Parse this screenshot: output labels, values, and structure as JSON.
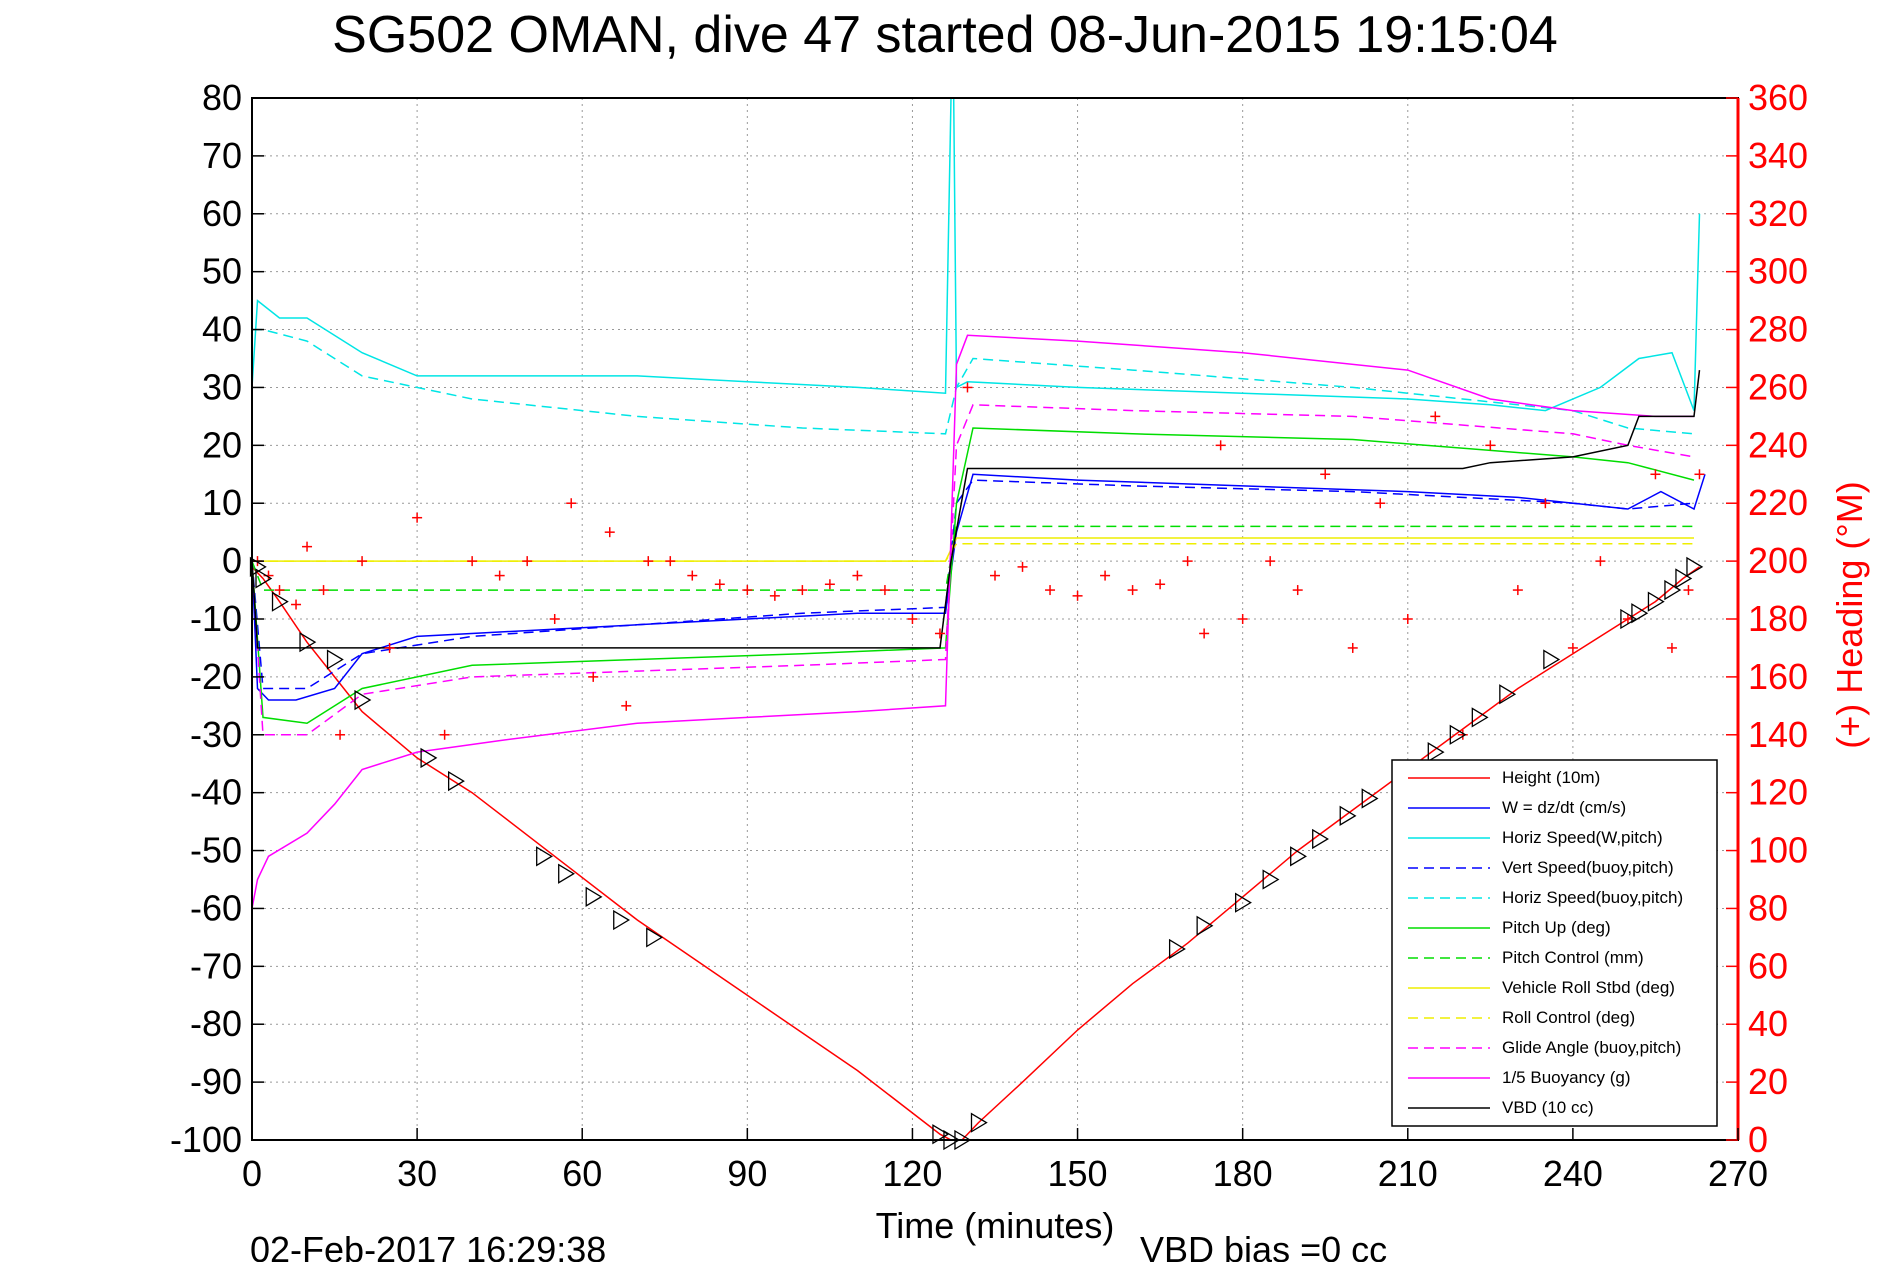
{
  "chart_data": {
    "type": "line",
    "title": "SG502 OMAN, dive 47 started 08-Jun-2015 19:15:04",
    "xlabel": "Time (minutes)",
    "ylabel_right": "(+) Heading (°M)",
    "xlim": [
      0,
      270
    ],
    "ylim_left": [
      -100,
      80
    ],
    "ylim_right": [
      0,
      360
    ],
    "x_ticks": [
      "0",
      "30",
      "60",
      "90",
      "120",
      "150",
      "180",
      "210",
      "240",
      "270"
    ],
    "y_ticks_left": [
      "80",
      "70",
      "60",
      "50",
      "40",
      "30",
      "20",
      "10",
      "0",
      "-10",
      "-20",
      "-30",
      "-40",
      "-50",
      "-60",
      "-70",
      "-80",
      "-90",
      "-100"
    ],
    "y_ticks_right": [
      "360",
      "340",
      "320",
      "300",
      "280",
      "260",
      "240",
      "220",
      "200",
      "180",
      "160",
      "140",
      "120",
      "100",
      "80",
      "60",
      "40",
      "20",
      "0"
    ],
    "grid": true,
    "legend_position": "lower-right",
    "footer_date": "02-Feb-2017 16:29:38",
    "footer_bias": "VBD bias =0 cc",
    "series": [
      {
        "name": "Height (10m)",
        "color": "#ff0000",
        "dash": "solid",
        "x": [
          0,
          2,
          5,
          10,
          15,
          20,
          30,
          40,
          55,
          70,
          90,
          110,
          125,
          127,
          129,
          132,
          140,
          150,
          160,
          170,
          180,
          190,
          200,
          210,
          220,
          230,
          240,
          250,
          255,
          260,
          263
        ],
        "y": [
          -1,
          -3,
          -7,
          -14,
          -20,
          -26,
          -34,
          -40,
          -51,
          -62,
          -75,
          -88,
          -99,
          -100,
          -100,
          -97,
          -90,
          -81,
          -73,
          -66,
          -58,
          -50,
          -43,
          -36,
          -29,
          -22,
          -16,
          -10,
          -7,
          -3,
          -1
        ]
      },
      {
        "name": "W = dz/dt (cm/s)",
        "color": "#0000ff",
        "dash": "solid",
        "x": [
          0,
          1,
          3,
          8,
          15,
          20,
          30,
          50,
          70,
          90,
          110,
          126,
          128,
          131,
          150,
          180,
          210,
          230,
          250,
          256,
          262,
          264
        ],
        "y": [
          0,
          -22,
          -24,
          -24,
          -22,
          -16,
          -13,
          -12,
          -11,
          -10,
          -9,
          -9,
          5,
          15,
          14,
          13,
          12,
          11,
          9,
          12,
          9,
          15
        ]
      },
      {
        "name": "Horiz Speed(W,pitch)",
        "color": "#00e5e5",
        "dash": "solid",
        "x": [
          0,
          1,
          5,
          10,
          20,
          30,
          50,
          70,
          90,
          110,
          126,
          127,
          127.5,
          128,
          130,
          150,
          180,
          210,
          225,
          235,
          245,
          252,
          258,
          262,
          263
        ],
        "y": [
          30,
          45,
          42,
          42,
          36,
          32,
          32,
          32,
          31,
          30,
          29,
          80,
          80,
          30,
          31,
          30,
          29,
          28,
          27,
          26,
          30,
          35,
          36,
          26,
          60
        ]
      },
      {
        "name": "Vert Speed(buoy,pitch)",
        "color": "#0000ff",
        "dash": "dash",
        "x": [
          0,
          2,
          10,
          20,
          40,
          70,
          100,
          126,
          128,
          131,
          160,
          200,
          240,
          250,
          262
        ],
        "y": [
          0,
          -22,
          -22,
          -16,
          -13,
          -11,
          -9,
          -8,
          10,
          14,
          13,
          12,
          10,
          9,
          10
        ]
      },
      {
        "name": "Horiz Speed(buoy,pitch)",
        "color": "#00e5e5",
        "dash": "dash",
        "x": [
          0,
          2,
          10,
          20,
          40,
          70,
          100,
          126,
          128,
          131,
          160,
          200,
          240,
          250,
          262
        ],
        "y": [
          40,
          40,
          38,
          32,
          28,
          25,
          23,
          22,
          30,
          35,
          33,
          30,
          26,
          23,
          22
        ]
      },
      {
        "name": "Pitch Up (deg)",
        "color": "#00dd00",
        "dash": "solid",
        "x": [
          0,
          2,
          10,
          20,
          40,
          70,
          100,
          126,
          128,
          131,
          160,
          200,
          240,
          250,
          262
        ],
        "y": [
          0,
          -27,
          -28,
          -22,
          -18,
          -17,
          -16,
          -15,
          10,
          23,
          22,
          21,
          18,
          17,
          14
        ]
      },
      {
        "name": "Pitch Control (mm)",
        "color": "#00dd00",
        "dash": "dash",
        "x": [
          0,
          2,
          126,
          128,
          262
        ],
        "y": [
          0,
          -5,
          -5,
          6,
          6
        ]
      },
      {
        "name": "Vehicle Roll Stbd (deg)",
        "color": "#eeee00",
        "dash": "solid",
        "x": [
          0,
          2,
          126,
          128,
          262
        ],
        "y": [
          0,
          0,
          0,
          4,
          4
        ]
      },
      {
        "name": "Roll Control (deg)",
        "color": "#eeee00",
        "dash": "dash",
        "x": [
          0,
          2,
          126,
          128,
          262
        ],
        "y": [
          0,
          0,
          0,
          3,
          3
        ]
      },
      {
        "name": "Glide Angle (buoy,pitch)",
        "color": "#ff00ff",
        "dash": "dash",
        "x": [
          0,
          2,
          10,
          20,
          40,
          70,
          100,
          126,
          128,
          131,
          160,
          200,
          240,
          250,
          262
        ],
        "y": [
          0,
          -30,
          -30,
          -23,
          -20,
          -19,
          -18,
          -17,
          20,
          27,
          26,
          25,
          22,
          20,
          18
        ]
      },
      {
        "name": "1/5 Buoyancy (g)",
        "color": "#ff00ff",
        "dash": "solid",
        "x": [
          0,
          1,
          3,
          10,
          15,
          20,
          30,
          45,
          70,
          90,
          110,
          126,
          128,
          130,
          150,
          180,
          210,
          225,
          240,
          255,
          262
        ],
        "y": [
          -60,
          -55,
          -51,
          -47,
          -42,
          -36,
          -33,
          -31,
          -28,
          -27,
          -26,
          -25,
          34,
          39,
          38,
          36,
          33,
          28,
          26,
          25,
          25
        ]
      },
      {
        "name": "VBD (10 cc)",
        "color": "#000000",
        "dash": "solid",
        "x": [
          0,
          1,
          3,
          125,
          127,
          130,
          132,
          220,
          225,
          240,
          250,
          252,
          262,
          263
        ],
        "y": [
          0,
          -15,
          -15,
          -15,
          0,
          16,
          16,
          16,
          17,
          18,
          20,
          25,
          25,
          33
        ]
      }
    ],
    "heading_series": {
      "name": "Heading",
      "color": "#ff0000",
      "axis": "right",
      "marker": "plus",
      "x": [
        1,
        3,
        5,
        8,
        10,
        13,
        16,
        20,
        25,
        30,
        35,
        40,
        45,
        50,
        55,
        58,
        62,
        65,
        68,
        72,
        76,
        80,
        85,
        90,
        95,
        100,
        105,
        110,
        115,
        120,
        125,
        130,
        135,
        140,
        145,
        150,
        155,
        160,
        165,
        170,
        173,
        176,
        180,
        185,
        190,
        195,
        200,
        205,
        210,
        215,
        220,
        225,
        230,
        235,
        240,
        245,
        250,
        255,
        258,
        261,
        263
      ],
      "y": [
        200,
        195,
        190,
        185,
        205,
        190,
        140,
        200,
        170,
        215,
        140,
        200,
        195,
        200,
        180,
        220,
        160,
        210,
        150,
        200,
        200,
        195,
        192,
        190,
        188,
        190,
        192,
        195,
        190,
        180,
        175,
        260,
        195,
        198,
        190,
        188,
        195,
        190,
        192,
        200,
        175,
        240,
        180,
        200,
        190,
        230,
        170,
        220,
        180,
        250,
        140,
        240,
        190,
        220,
        170,
        200,
        180,
        230,
        170,
        190,
        230
      ]
    },
    "markers": {
      "symbol": "triangle",
      "color": "#000000",
      "x": [
        1,
        2,
        5,
        10,
        15,
        20,
        32,
        37,
        53,
        57,
        62,
        67,
        73,
        125,
        127,
        129,
        132,
        168,
        173,
        180,
        185,
        190,
        194,
        199,
        203,
        210,
        215,
        219,
        223,
        228,
        236,
        250,
        252,
        255,
        258,
        260,
        262
      ],
      "y": [
        -1,
        -3,
        -7,
        -14,
        -17,
        -24,
        -34,
        -38,
        -51,
        -54,
        -58,
        -62,
        -65,
        -99,
        -100,
        -100,
        -97,
        -67,
        -63,
        -59,
        -55,
        -51,
        -48,
        -44,
        -41,
        -36,
        -33,
        -30,
        -27,
        -23,
        -17,
        -10,
        -9,
        -7,
        -5,
        -3,
        -1
      ]
    }
  }
}
